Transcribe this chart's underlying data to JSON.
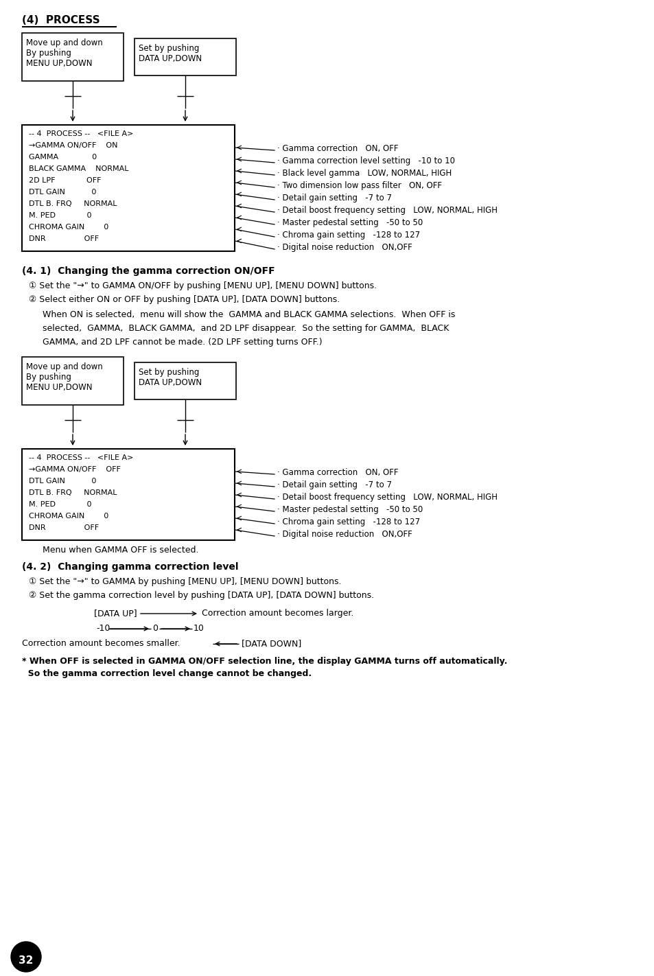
{
  "bg_color": "#ffffff",
  "title_section1": "(4)  PROCESS",
  "section41_title": "(4. 1)  Changing the gamma correction ON/OFF",
  "section42_title": "(4. 2)  Changing gamma correction level",
  "box1_label1": "Move up and down\nBy pushing\nMENU UP,DOWN",
  "box1_label2": "Set by pushing\nDATA UP,DOWN",
  "menu_lines_on": [
    "-- 4  PROCESS --   <FILE A>",
    "→GAMMA ON/OFF    ON",
    "GAMMA              0",
    "BLACK GAMMA    NORMAL",
    "2D LPF             OFF",
    "DTL GAIN           0",
    "DTL B. FRQ     NORMAL",
    "M. PED             0",
    "CHROMA GAIN        0",
    "DNR                OFF"
  ],
  "annotations_on": [
    "· Gamma correction   ON, OFF",
    "· Gamma correction level setting   -10 to 10",
    "· Black level gamma   LOW, NORMAL, HIGH",
    "· Two dimension low pass filter   ON, OFF",
    "· Detail gain setting   -7 to 7",
    "· Detail boost frequency setting   LOW, NORMAL, HIGH",
    "· Master pedestal setting   -50 to 50",
    "· Chroma gain setting   -128 to 127",
    "· Digital noise reduction   ON,OFF"
  ],
  "menu_lines_off": [
    "-- 4  PROCESS --   <FILE A>",
    "→GAMMA ON/OFF    OFF",
    "DTL GAIN           0",
    "DTL B. FRQ     NORMAL",
    "M. PED             0",
    "CHROMA GAIN        0",
    "DNR                OFF"
  ],
  "annotations_off": [
    "· Gamma correction   ON, OFF",
    "· Detail gain setting   -7 to 7",
    "· Detail boost frequency setting   LOW, NORMAL, HIGH",
    "· Master pedestal setting   -50 to 50",
    "· Chroma gain setting   -128 to 127",
    "· Digital noise reduction   ON,OFF"
  ],
  "step1_text41": "① Set the \"→\" to GAMMA ON/OFF by pushing [MENU UP], [MENU DOWN] buttons.",
  "step2_text41": "② Select either ON or OFF by pushing [DATA UP], [DATA DOWN] buttons.",
  "para_line1": "When ON is selected,  menu will show the  GAMMA and BLACK GAMMA selections.  When OFF is",
  "para_line2": "selected,  GAMMA,  BLACK GAMMA,  and 2D LPF disappear.  So the setting for GAMMA,  BLACK",
  "para_line3": "GAMMA, and 2D LPF cannot be made. (2D LPF setting turns OFF.)",
  "caption_off": "Menu when GAMMA OFF is selected.",
  "step1_text42": "① Set the \"→\" to GAMMA by pushing [MENU UP], [MENU DOWN] buttons.",
  "step2_text42": "② Set the gamma correction level by pushing [DATA UP], [DATA DOWN] buttons.",
  "warn_line1": "* When OFF is selected in GAMMA ON/OFF selection line, the display GAMMA turns off automatically.",
  "warn_line2": "  So the gamma correction level change cannot be changed.",
  "page_number": "32"
}
